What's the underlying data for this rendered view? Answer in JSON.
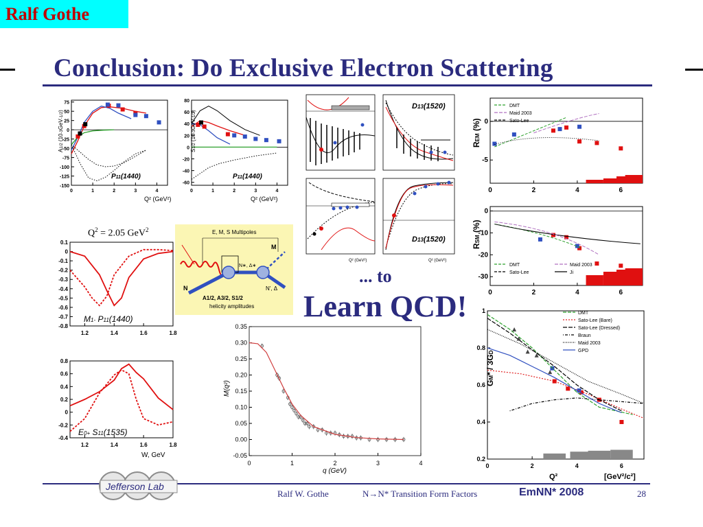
{
  "header": {
    "author_tag": "Ralf Gothe",
    "title": "Conclusion: Do Exclusive Electron Scattering"
  },
  "center": {
    "to": "... to",
    "learn": "Learn QCD!"
  },
  "footer": {
    "logo_text": "Jefferson Lab",
    "author": "Ralf W. Gothe",
    "talk": "N→N* Transition Form Factors",
    "conference": "EmNN* 2008",
    "page": "28"
  },
  "diagram": {
    "multipoles": "E, M, S  Multipoles",
    "helicity_amps": "A1/2, A3/2, S1/2",
    "helicity_label": "helicity amplitudes",
    "n_label": "N",
    "nstar_label": "N∗, Δ∗",
    "nprime_label": "N', Δ",
    "m_label": "M"
  },
  "colors": {
    "title_blue": "#2b2b7e",
    "tag_bg": "#00ffff",
    "tag_text": "#c00000",
    "red": "#e01010",
    "green": "#2ca02c",
    "blue_pts": "#3050c0",
    "diagram_bg": "#fbf6b4"
  },
  "chart_data": [
    {
      "type": "line",
      "panel": "A1/2 P11(1440)",
      "label": "P11(1440)",
      "ylabel": "A1/2 (10^-3 GeV^-1/2)",
      "xlabel": "Q² (GeV²)",
      "xlim": [
        0,
        4.5
      ],
      "ylim": [
        -150,
        80
      ],
      "xticks": [
        "0",
        "1",
        "2",
        "3",
        "4"
      ],
      "yticks": [
        "75",
        "50",
        "25",
        "0",
        "-25",
        "-50",
        "-75",
        "-100",
        "-125",
        "-150"
      ],
      "series": [
        {
          "style": "red",
          "x": [
            0.0,
            0.3,
            0.6,
            1.0,
            1.4,
            1.8,
            2.4,
            3.0,
            3.5
          ],
          "y": [
            -65,
            -30,
            10,
            45,
            60,
            62,
            58,
            50,
            45
          ]
        },
        {
          "style": "blue",
          "x": [
            0.0,
            0.3,
            0.6,
            1.0,
            1.4,
            1.8,
            2.2,
            2.8
          ],
          "y": [
            -55,
            -20,
            20,
            50,
            64,
            58,
            45,
            30
          ]
        },
        {
          "style": "green",
          "x": [
            0.0,
            0.3,
            0.6,
            1.0,
            1.5,
            2.0
          ],
          "y": [
            -40,
            -20,
            -8,
            -3,
            -1,
            0
          ]
        },
        {
          "style": "dotted",
          "x": [
            0.0,
            0.4,
            0.8,
            1.2,
            1.6,
            2.0,
            2.5,
            3.0,
            3.5
          ],
          "y": [
            -40,
            -90,
            -130,
            -138,
            -128,
            -110,
            -85,
            -65,
            -55
          ]
        },
        {
          "style": "dotted",
          "x": [
            0.0,
            0.4,
            0.8,
            1.2,
            1.6,
            2.0,
            2.5,
            3.0,
            3.5
          ],
          "y": [
            -40,
            -60,
            -80,
            -95,
            -100,
            -98,
            -88,
            -72,
            -55
          ]
        }
      ],
      "points_red": [
        [
          0.3,
          -18
        ],
        [
          0.6,
          10
        ],
        [
          1.75,
          65
        ],
        [
          2.4,
          55
        ],
        [
          3.0,
          45
        ]
      ],
      "points_blue": [
        [
          1.7,
          68
        ],
        [
          2.2,
          66
        ],
        [
          3.0,
          40
        ],
        [
          3.5,
          37
        ],
        [
          4.1,
          20
        ]
      ],
      "points_black": [
        [
          0.4,
          -10
        ],
        [
          0.65,
          15
        ]
      ]
    },
    {
      "type": "line",
      "panel": "S1/2 P11(1440)",
      "label": "P11(1440)",
      "ylabel": "S1/2 (10^-3 GeV^-1/2)",
      "xlabel": "Q² (GeV²)",
      "xlim": [
        0,
        4.5
      ],
      "ylim": [
        -65,
        80
      ],
      "xticks": [
        "0",
        "1",
        "2",
        "3",
        "4"
      ],
      "yticks": [
        "80",
        "60",
        "40",
        "20",
        "0",
        "-20",
        "-40",
        "-60"
      ],
      "series": [
        {
          "style": "black",
          "x": [
            0.0,
            0.4,
            0.8,
            1.2,
            1.8,
            2.5,
            3.2
          ],
          "y": [
            40,
            62,
            70,
            62,
            45,
            30,
            20
          ]
        },
        {
          "style": "red",
          "x": [
            0.0,
            0.4,
            0.8,
            1.2,
            1.8,
            2.5
          ],
          "y": [
            35,
            45,
            42,
            36,
            28,
            20
          ]
        },
        {
          "style": "blue",
          "x": [
            0.0,
            0.4,
            0.8,
            1.2,
            1.8
          ],
          "y": [
            40,
            38,
            28,
            16,
            5
          ]
        },
        {
          "style": "green",
          "x": [
            0.0,
            0.5,
            1.0,
            2.0,
            3.0,
            4.0
          ],
          "y": [
            0,
            0,
            0,
            0,
            0,
            0
          ]
        },
        {
          "style": "dotted",
          "x": [
            0.0,
            0.4,
            0.8,
            1.3,
            2.0,
            3.0,
            4.0
          ],
          "y": [
            -55,
            -45,
            -35,
            -28,
            -22,
            -15,
            -10
          ]
        }
      ],
      "points_red": [
        [
          0.3,
          38
        ],
        [
          0.6,
          35
        ],
        [
          1.7,
          22
        ]
      ],
      "points_blue": [
        [
          2.0,
          20
        ],
        [
          2.5,
          18
        ],
        [
          3.0,
          14
        ],
        [
          3.5,
          12
        ],
        [
          4.1,
          10
        ]
      ],
      "points_black": [
        [
          0.45,
          42
        ]
      ]
    },
    {
      "type": "line",
      "panel": "M1- P11(1440)",
      "label": "M1- P11(1440)",
      "xlim": [
        1.1,
        1.8
      ],
      "ylim": [
        -0.8,
        0.1
      ],
      "xticks": [
        "1.2",
        "1.4",
        "1.6",
        "1.8"
      ],
      "yticks": [
        "0.1",
        "0",
        "-0.1",
        "-0.2",
        "-0.3",
        "-0.4",
        "-0.5",
        "-0.6",
        "-0.7",
        "-0.8"
      ],
      "annotation": "Q² = 2.05 GeV²",
      "series": [
        {
          "style": "red-solid",
          "x": [
            1.1,
            1.2,
            1.3,
            1.35,
            1.4,
            1.45,
            1.5,
            1.6,
            1.7,
            1.8
          ],
          "y": [
            0.0,
            -0.05,
            -0.25,
            -0.42,
            -0.58,
            -0.5,
            -0.28,
            -0.08,
            -0.02,
            0.0
          ]
        },
        {
          "style": "red-dotted",
          "x": [
            1.1,
            1.2,
            1.25,
            1.3,
            1.35,
            1.4,
            1.5,
            1.6,
            1.7,
            1.8
          ],
          "y": [
            -0.2,
            -0.38,
            -0.5,
            -0.58,
            -0.48,
            -0.25,
            -0.05,
            0.02,
            0.02,
            0.01
          ]
        }
      ]
    },
    {
      "type": "line",
      "panel": "E0+ S11(1535)",
      "label": "E0+ S11(1535)",
      "xlabel": "W, GeV",
      "xlim": [
        1.1,
        1.8
      ],
      "ylim": [
        -0.4,
        0.8
      ],
      "xticks": [
        "1.2",
        "1.4",
        "1.6",
        "1.8"
      ],
      "yticks": [
        "0.8",
        "0.6",
        "0.4",
        "0.2",
        "0",
        "-0.2",
        "-0.4"
      ],
      "series": [
        {
          "style": "red-solid",
          "x": [
            1.1,
            1.2,
            1.3,
            1.4,
            1.45,
            1.5,
            1.55,
            1.6,
            1.7,
            1.8
          ],
          "y": [
            0.1,
            0.2,
            0.32,
            0.5,
            0.68,
            0.75,
            0.62,
            0.52,
            0.22,
            0.04
          ]
        },
        {
          "style": "red-dotted",
          "x": [
            1.1,
            1.2,
            1.3,
            1.4,
            1.45,
            1.5,
            1.55,
            1.6,
            1.7,
            1.8
          ],
          "y": [
            -0.3,
            -0.1,
            0.3,
            0.58,
            0.66,
            0.6,
            0.2,
            -0.1,
            -0.2,
            -0.15
          ]
        }
      ]
    },
    {
      "type": "scatter",
      "panel": "M(q²)",
      "ylabel": "M(q²)",
      "xlabel": "q (GeV)",
      "xlim": [
        0,
        4
      ],
      "ylim": [
        -0.05,
        0.35
      ],
      "xticks": [
        "0",
        "1",
        "2",
        "3",
        "4"
      ],
      "yticks": [
        "0.35",
        "0.30",
        "0.25",
        "0.20",
        "0.15",
        "0.10",
        "0.05",
        "0.00",
        "-0.05"
      ],
      "curve_x": [
        0.0,
        0.2,
        0.4,
        0.6,
        0.8,
        1.0,
        1.2,
        1.5,
        2.0,
        2.5,
        3.0,
        3.6
      ],
      "curve_y": [
        0.3,
        0.297,
        0.27,
        0.215,
        0.16,
        0.11,
        0.075,
        0.04,
        0.016,
        0.006,
        0.002,
        0.0
      ],
      "points_x": [
        0.3,
        0.65,
        0.7,
        0.8,
        0.9,
        0.95,
        1.0,
        1.05,
        1.1,
        1.15,
        1.2,
        1.25,
        1.3,
        1.35,
        1.4,
        1.5,
        1.6,
        1.7,
        1.8,
        1.9,
        2.0,
        2.1,
        2.2,
        2.3,
        2.4,
        2.5,
        2.6,
        2.8,
        3.0,
        3.2,
        3.4,
        3.6
      ],
      "points_y": [
        0.29,
        0.2,
        0.19,
        0.15,
        0.13,
        0.11,
        0.1,
        0.09,
        0.08,
        0.07,
        0.07,
        0.06,
        0.05,
        0.05,
        0.04,
        0.04,
        0.03,
        0.03,
        0.02,
        0.02,
        0.02,
        0.015,
        0.01,
        0.01,
        0.01,
        0.005,
        0.005,
        0.0,
        0.0,
        0.0,
        0.0,
        0.0
      ]
    },
    {
      "type": "line",
      "panel": "REM (%)",
      "ylabel": "R_EM (%)",
      "xlim": [
        0,
        7
      ],
      "ylim": [
        -8,
        3
      ],
      "xticks": [
        "0",
        "2",
        "4",
        "6"
      ],
      "yticks": [
        "0",
        "-5"
      ],
      "legend": [
        "DMT",
        "Maid 2003",
        "Sato-Lee"
      ],
      "points_red": [
        [
          2.9,
          -1.2
        ],
        [
          3.5,
          -0.8
        ],
        [
          4.1,
          -2.6
        ],
        [
          4.9,
          -2.8
        ],
        [
          6.0,
          -3.5
        ]
      ],
      "points_blue": [
        [
          0.2,
          -2.9
        ],
        [
          1.1,
          -1.7
        ],
        [
          3.2,
          -1.0
        ],
        [
          4.1,
          -0.7
        ]
      ],
      "bars_red": [
        [
          4.8,
          0.5
        ],
        [
          5.6,
          0.7
        ],
        [
          6.2,
          1.0
        ],
        [
          6.6,
          1.2
        ]
      ]
    },
    {
      "type": "line",
      "panel": "RSM (%)",
      "ylabel": "R_SM (%)",
      "xlim": [
        0,
        7
      ],
      "ylim": [
        -34,
        2
      ],
      "xticks": [
        "0",
        "2",
        "4",
        "6"
      ],
      "yticks": [
        "0",
        "-10",
        "-20",
        "-30"
      ],
      "legend": [
        "DMT",
        "Sato-Lee",
        "Maid 2003",
        "Ji"
      ],
      "points_red": [
        [
          2.9,
          -11
        ],
        [
          3.5,
          -12
        ],
        [
          4.1,
          -17
        ],
        [
          4.9,
          -24
        ],
        [
          6.0,
          -25
        ]
      ],
      "points_blue": [
        [
          2.3,
          -13
        ],
        [
          4.0,
          -16
        ]
      ],
      "bars_red": [
        [
          4.8,
          1.5
        ],
        [
          5.6,
          2.0
        ],
        [
          6.2,
          2.3
        ],
        [
          6.6,
          2.5
        ]
      ]
    },
    {
      "type": "line",
      "panel": "G*M / 3GD",
      "ylabel": "G*M / 3GD",
      "xlabel": "Q²",
      "unit_label": "[GeV²/c²]",
      "xlim": [
        0,
        7
      ],
      "ylim": [
        0.2,
        1.0
      ],
      "xticks": [
        "0",
        "2",
        "4",
        "6"
      ],
      "yticks": [
        "1",
        "0.8",
        "0.6",
        "0.4",
        "0.2"
      ],
      "legend": [
        "DMT",
        "Sato-Lee (Bare)",
        "Sato-Lee (Dressed)",
        "Braun",
        "Maid 2003",
        "GPD"
      ],
      "points_red": [
        [
          3.0,
          0.62
        ],
        [
          3.6,
          0.58
        ],
        [
          4.2,
          0.56
        ],
        [
          5.0,
          0.52
        ],
        [
          6.0,
          0.4
        ]
      ],
      "points_blue": [
        [
          2.9,
          0.69
        ],
        [
          4.1,
          0.57
        ]
      ],
      "bars_gray": [
        [
          3.0,
          0.23
        ],
        [
          4.2,
          0.24
        ],
        [
          5.0,
          0.245
        ],
        [
          6.0,
          0.25
        ]
      ]
    }
  ]
}
